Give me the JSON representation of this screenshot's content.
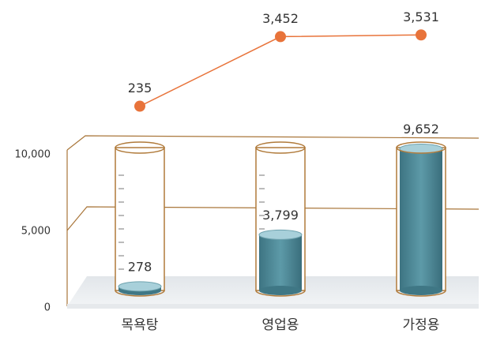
{
  "chart_data": {
    "type": "bar",
    "categories": [
      "목욕탕",
      "영업용",
      "가정용"
    ],
    "ylim": [
      0,
      10000
    ],
    "yticks": [
      0,
      {
        "value": 5000,
        "label": "5,000"
      },
      {
        "value": 10000,
        "label": "10,000"
      }
    ],
    "series": [
      {
        "type": "bar",
        "color": "#4f8a98",
        "values": [
          278,
          3799,
          9652
        ],
        "value_labels": [
          "278",
          "3,799",
          "9,652"
        ]
      },
      {
        "type": "line",
        "color": "#e8733a",
        "values": [
          235,
          3452,
          3531
        ],
        "value_labels": [
          "235",
          "3,452",
          "3,531"
        ]
      }
    ]
  }
}
